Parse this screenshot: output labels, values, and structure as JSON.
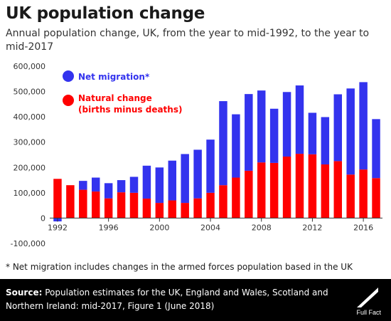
{
  "title": "UK population change",
  "subtitle": "Annual population change, UK, from the year to mid-1992, to the year to mid-2017",
  "footnote": "* Net migration includes changes in the armed forces population based in the UK",
  "source_label": "Source:",
  "source_text": "Population estimates for the UK, England and Wales, Scotland and Northern Ireland: mid-2017, Figure 1 (June 2018)",
  "logo_text": "Full Fact",
  "colors": {
    "net_migration": "#3333ee",
    "natural_change": "#ff0000",
    "axis": "#333333"
  },
  "chart_data": {
    "type": "bar",
    "stacked": true,
    "x": [
      1992,
      1993,
      1994,
      1995,
      1996,
      1997,
      1998,
      1999,
      2000,
      2001,
      2002,
      2003,
      2004,
      2005,
      2006,
      2007,
      2008,
      2009,
      2010,
      2011,
      2012,
      2013,
      2014,
      2015,
      2016,
      2017
    ],
    "series": [
      {
        "name": "Natural change (births minus deaths)",
        "values": [
          155000,
          130000,
          112000,
          105000,
          78000,
          102000,
          100000,
          77000,
          60000,
          70000,
          60000,
          78000,
          100000,
          130000,
          160000,
          187000,
          220000,
          218000,
          243000,
          254000,
          252000,
          212000,
          225000,
          172000,
          192000,
          158000
        ]
      },
      {
        "name": "Net migration*",
        "values": [
          -13000,
          0,
          35000,
          55000,
          60000,
          48000,
          63000,
          130000,
          140000,
          157000,
          193000,
          192000,
          210000,
          332000,
          250000,
          303000,
          284000,
          214000,
          255000,
          270000,
          164000,
          187000,
          264000,
          340000,
          345000,
          233000
        ]
      }
    ],
    "ylim": [
      -100000,
      600000
    ],
    "yticks": [
      -100000,
      0,
      100000,
      200000,
      300000,
      400000,
      500000,
      600000
    ],
    "ytick_labels": [
      "-100,000",
      "0",
      "100,000",
      "200,000",
      "300,000",
      "400,000",
      "500,000",
      "600,000"
    ],
    "xtick_years": [
      1992,
      1996,
      2000,
      2004,
      2008,
      2012,
      2016
    ],
    "xtick_labels": [
      "1992",
      "1996",
      "2000",
      "2004",
      "2008",
      "2012",
      "2016"
    ],
    "legend": [
      {
        "series": "Net migration*",
        "text": "Net migration*",
        "lines": [
          "Net migration*"
        ]
      },
      {
        "series": "Natural change (births minus deaths)",
        "lines": [
          "Natural change",
          "(births minus deaths)"
        ]
      }
    ],
    "legend_position": "top-left",
    "grid": false
  }
}
